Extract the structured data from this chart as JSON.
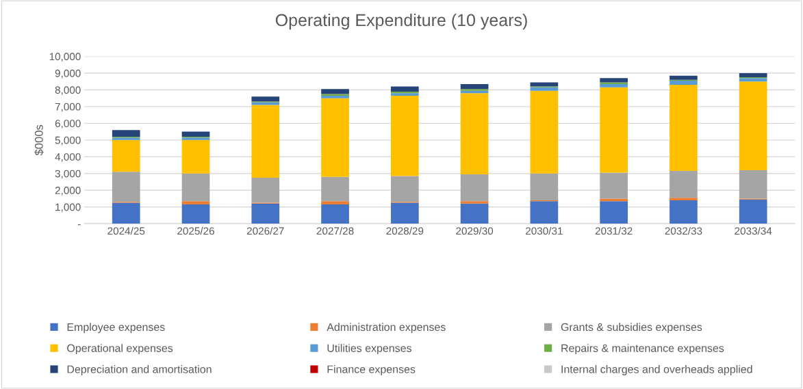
{
  "chart_data": {
    "type": "bar",
    "stacked": true,
    "title": "Operating Expenditure (10 years)",
    "ylabel": "$000s",
    "categories": [
      "2024/25",
      "2025/26",
      "2026/27",
      "2027/28",
      "2028/29",
      "2029/30",
      "2030/31",
      "2031/32",
      "2032/33",
      "2033/34"
    ],
    "series": [
      {
        "name": "Employee expenses",
        "color": "#4472c4",
        "values": [
          1250,
          1150,
          1200,
          1150,
          1250,
          1200,
          1350,
          1350,
          1400,
          1450
        ]
      },
      {
        "name": "Administration expenses",
        "color": "#ed7d31",
        "values": [
          50,
          200,
          50,
          200,
          50,
          150,
          50,
          150,
          150,
          50
        ]
      },
      {
        "name": "Grants & subsidies expenses",
        "color": "#a5a5a5",
        "values": [
          1800,
          1650,
          1500,
          1450,
          1550,
          1600,
          1600,
          1550,
          1600,
          1700
        ]
      },
      {
        "name": "Operational expenses",
        "color": "#ffc000",
        "values": [
          1900,
          2000,
          4350,
          4700,
          4800,
          4850,
          4950,
          5100,
          5150,
          5300
        ]
      },
      {
        "name": "Utilities expenses",
        "color": "#5b9bd5",
        "values": [
          150,
          150,
          150,
          150,
          150,
          150,
          200,
          200,
          250,
          200
        ]
      },
      {
        "name": "Repairs & maintenance expenses",
        "color": "#70ad47",
        "values": [
          50,
          50,
          50,
          100,
          100,
          100,
          50,
          100,
          50,
          50
        ]
      },
      {
        "name": "Depreciation and amortisation",
        "color": "#264478",
        "values": [
          400,
          300,
          300,
          300,
          300,
          300,
          250,
          250,
          250,
          250
        ]
      },
      {
        "name": "Finance expenses",
        "color": "#c00000",
        "values": [
          0,
          0,
          0,
          0,
          0,
          0,
          0,
          0,
          0,
          0
        ]
      },
      {
        "name": "Internal charges and overheads applied",
        "color": "#c9c9c9",
        "values": [
          0,
          0,
          0,
          0,
          0,
          0,
          0,
          0,
          0,
          0
        ]
      }
    ],
    "ylim": [
      0,
      10000
    ],
    "yticks": [
      {
        "value": 0,
        "label": "-"
      },
      {
        "value": 1000,
        "label": "1,000"
      },
      {
        "value": 2000,
        "label": "2,000"
      },
      {
        "value": 3000,
        "label": "3,000"
      },
      {
        "value": 4000,
        "label": "4,000"
      },
      {
        "value": 5000,
        "label": "5,000"
      },
      {
        "value": 6000,
        "label": "6,000"
      },
      {
        "value": 7000,
        "label": "7,000"
      },
      {
        "value": 8000,
        "label": "8,000"
      },
      {
        "value": 9000,
        "label": "9,000"
      },
      {
        "value": 10000,
        "label": "10,000"
      }
    ],
    "grid": "y",
    "legend": "bottom"
  }
}
